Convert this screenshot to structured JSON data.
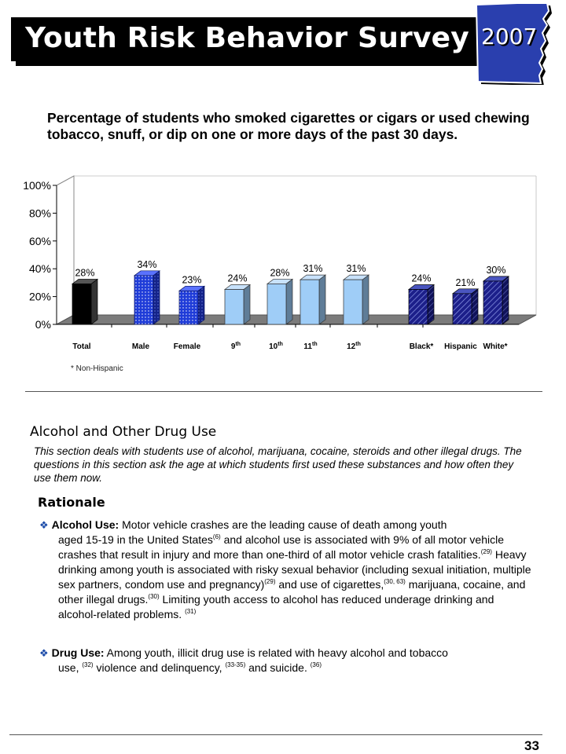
{
  "header": {
    "title": "Youth Risk Behavior Survey",
    "year": "2007"
  },
  "chart_title": "Percentage of students who smoked cigarettes or cigars or used chewing tobacco, snuff,  or dip on one or more days of the past 30 days.",
  "chart_data": {
    "type": "bar",
    "title": "Percentage of students who smoked cigarettes or cigars or used chewing tobacco, snuff,  or dip on one or more days of the past 30 days.",
    "categories": [
      "Total",
      "Male",
      "Female",
      "9th",
      "10th",
      "11th",
      "12th",
      "Black*",
      "Hispanic",
      "White*"
    ],
    "category_labels": [
      {
        "text": "Total",
        "sup": ""
      },
      {
        "text": "Male",
        "sup": ""
      },
      {
        "text": "Female",
        "sup": ""
      },
      {
        "text": "9",
        "sup": "th"
      },
      {
        "text": "10",
        "sup": "th"
      },
      {
        "text": "11",
        "sup": "th"
      },
      {
        "text": "12",
        "sup": "th"
      },
      {
        "text": "Black*",
        "sup": ""
      },
      {
        "text": "Hispanic",
        "sup": ""
      },
      {
        "text": "White*",
        "sup": ""
      }
    ],
    "values": [
      28,
      34,
      23,
      24,
      28,
      31,
      31,
      24,
      21,
      30
    ],
    "value_labels": [
      "28%",
      "34%",
      "23%",
      "24%",
      "28%",
      "31%",
      "31%",
      "24%",
      "21%",
      "30%"
    ],
    "bar_styles": [
      "solid-black",
      "dotted-blue",
      "dotted-blue",
      "light-blue",
      "light-blue",
      "light-blue",
      "light-blue",
      "hatched-navy",
      "hatched-navy",
      "hatched-navy"
    ],
    "colors": {
      "total": "#000000",
      "gender": "#1f3cd8",
      "grade": "#9fcdf7",
      "race": "#1c1f8a",
      "floor": "#7b7b7b",
      "wall": "#ffffff"
    },
    "yticks": [
      "0%",
      "20%",
      "40%",
      "60%",
      "80%",
      "100%"
    ],
    "ylim": [
      0,
      100
    ],
    "grid": false,
    "three_d": true,
    "footnote": "* Non-Hispanic"
  },
  "section": {
    "heading": "Alcohol and Other Drug Use",
    "intro": "This section deals with students use of alcohol, marijuana, cocaine, steroids and other illegal drugs.   The questions in this section ask the age at which students first used these substances and how often they use them now."
  },
  "rationale": {
    "heading": "Rationale",
    "alcohol": {
      "label": "Alcohol Use:",
      "first_line": " Motor vehicle crashes are the leading cause of death among youth",
      "t1": "aged 15-19 in the United States",
      "r1": "(6)",
      "t2": " and alcohol use is associated with 9% of all motor vehicle crashes that result in injury and more than one-third of all motor vehicle crash fatalities.",
      "r2": "(29)",
      "t3": "  Heavy drinking among youth is associated with risky sexual behavior (including  sexual initiation, multiple sex partners, condom use and pregnancy)",
      "r3": "(29)",
      "t4": " and use of cigarettes,",
      "r4": "(30, 63)",
      "t5": " marijuana, cocaine, and other illegal drugs.",
      "r5": "(30)",
      "t6": "   Limiting youth access  to alcohol has reduced underage drinking and alcohol-related problems.  ",
      "r6": "(31)"
    },
    "drug": {
      "label": "Drug Use:",
      "first_line": " Among youth, illicit drug use is related with heavy alcohol and tobacco",
      "t1": "use, ",
      "r1": "(32)",
      "t2": "  violence and delinquency, ",
      "r2": "(33-35)",
      "t3": " and suicide.  ",
      "r3": "(36)"
    }
  },
  "page_number": "33"
}
